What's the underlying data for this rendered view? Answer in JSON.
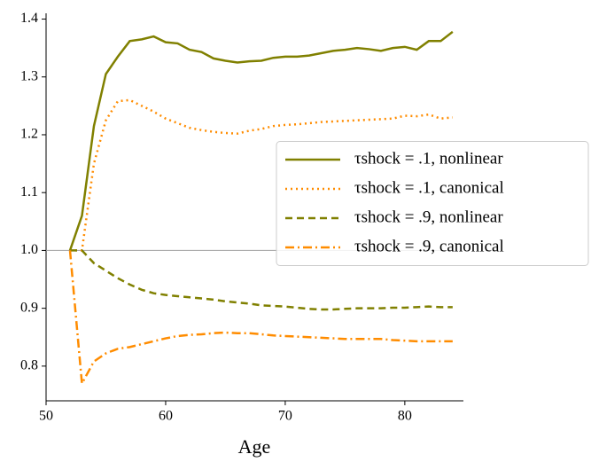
{
  "chart_data": {
    "type": "line",
    "xlabel": "Age",
    "x": [
      52,
      53,
      54,
      55,
      56,
      57,
      58,
      59,
      60,
      61,
      62,
      63,
      64,
      65,
      66,
      67,
      68,
      69,
      70,
      71,
      72,
      73,
      74,
      75,
      76,
      77,
      78,
      79,
      80,
      81,
      82,
      83,
      84
    ],
    "series": [
      {
        "name": "τshock = .1, nonlinear",
        "color": "#808000",
        "dash": "solid",
        "values": [
          1.0,
          1.06,
          1.215,
          1.305,
          1.335,
          1.362,
          1.365,
          1.37,
          1.36,
          1.358,
          1.347,
          1.343,
          1.332,
          1.328,
          1.325,
          1.327,
          1.328,
          1.333,
          1.335,
          1.335,
          1.337,
          1.341,
          1.345,
          1.347,
          1.35,
          1.348,
          1.345,
          1.35,
          1.352,
          1.347,
          1.362,
          1.362,
          1.378
        ]
      },
      {
        "name": "τshock = .1, canonical",
        "color": "#ff8c00",
        "dash": "dotted",
        "values": [
          1.0,
          1.0,
          1.15,
          1.225,
          1.258,
          1.26,
          1.25,
          1.24,
          1.228,
          1.22,
          1.212,
          1.208,
          1.205,
          1.203,
          1.202,
          1.207,
          1.21,
          1.215,
          1.217,
          1.218,
          1.22,
          1.222,
          1.223,
          1.224,
          1.225,
          1.226,
          1.227,
          1.228,
          1.233,
          1.232,
          1.235,
          1.228,
          1.23
        ]
      },
      {
        "name": "τshock = .9, nonlinear",
        "color": "#808000",
        "dash": "dashed",
        "values": [
          1.0,
          1.0,
          0.978,
          0.965,
          0.952,
          0.941,
          0.932,
          0.926,
          0.923,
          0.921,
          0.919,
          0.917,
          0.915,
          0.912,
          0.91,
          0.908,
          0.905,
          0.904,
          0.903,
          0.901,
          0.899,
          0.898,
          0.898,
          0.899,
          0.9,
          0.9,
          0.9,
          0.901,
          0.901,
          0.902,
          0.903,
          0.902,
          0.902
        ]
      },
      {
        "name": "τshock = .9, canonical",
        "color": "#ff8c00",
        "dash": "dashdot",
        "values": [
          1.0,
          0.77,
          0.808,
          0.822,
          0.83,
          0.833,
          0.838,
          0.843,
          0.848,
          0.852,
          0.854,
          0.855,
          0.857,
          0.858,
          0.857,
          0.857,
          0.855,
          0.853,
          0.852,
          0.851,
          0.85,
          0.849,
          0.848,
          0.847,
          0.847,
          0.847,
          0.847,
          0.845,
          0.844,
          0.843,
          0.843,
          0.843,
          0.843
        ]
      }
    ],
    "xlim": [
      50,
      84.9
    ],
    "ylim": [
      0.74,
      1.41
    ],
    "xticks": [
      50,
      60,
      70,
      80
    ],
    "yticks": [
      0.8,
      0.9,
      {
        "value": 1,
        "label": "1.0"
      },
      1.1,
      1.2,
      1.3,
      1.4
    ],
    "hline": 1,
    "hline_color": "#a0a0a0",
    "legend": "center right"
  }
}
